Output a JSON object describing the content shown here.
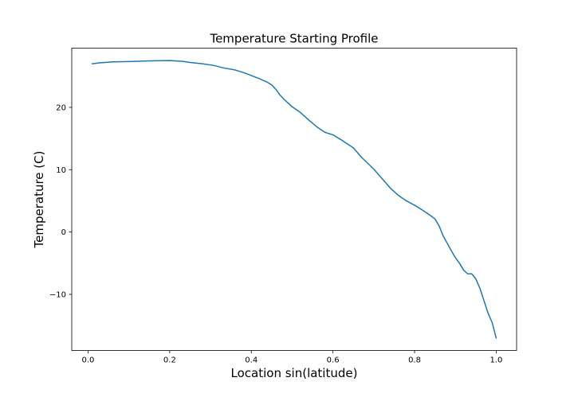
{
  "chart_data": {
    "type": "line",
    "title": "Temperature Starting Profile",
    "xlabel": "Location sin(latitude)",
    "ylabel": "Temperature (C)",
    "xlim": [
      -0.04,
      1.05
    ],
    "ylim": [
      -19,
      29.5
    ],
    "xticks": [
      0.0,
      0.2,
      0.4,
      0.6,
      0.8,
      1.0
    ],
    "xtick_labels": [
      "0.0",
      "0.2",
      "0.4",
      "0.6",
      "0.8",
      "1.0"
    ],
    "yticks": [
      -10,
      0,
      10,
      20
    ],
    "ytick_labels": [
      "−10",
      "0",
      "10",
      "20"
    ],
    "grid": false,
    "series": [
      {
        "color": "#1f77b4",
        "x": [
          0.01,
          0.03,
          0.06,
          0.1,
          0.15,
          0.2,
          0.23,
          0.25,
          0.28,
          0.31,
          0.33,
          0.36,
          0.38,
          0.4,
          0.42,
          0.44,
          0.45,
          0.46,
          0.47,
          0.48,
          0.5,
          0.52,
          0.54,
          0.56,
          0.58,
          0.6,
          0.62,
          0.65,
          0.67,
          0.7,
          0.72,
          0.74,
          0.76,
          0.78,
          0.8,
          0.82,
          0.84,
          0.85,
          0.86,
          0.87,
          0.88,
          0.89,
          0.9,
          0.91,
          0.92,
          0.93,
          0.94,
          0.95,
          0.96,
          0.97,
          0.98,
          0.99,
          1.0
        ],
        "y": [
          27.0,
          27.15,
          27.3,
          27.35,
          27.45,
          27.5,
          27.4,
          27.2,
          27.0,
          26.7,
          26.35,
          26.0,
          25.6,
          25.1,
          24.6,
          24.0,
          23.6,
          22.9,
          22.0,
          21.3,
          20.1,
          19.2,
          18.0,
          16.9,
          16.0,
          15.6,
          14.8,
          13.5,
          12.0,
          10.1,
          8.6,
          7.1,
          5.9,
          5.0,
          4.3,
          3.5,
          2.6,
          2.1,
          1.0,
          -0.6,
          -1.8,
          -3.0,
          -4.1,
          -5.0,
          -6.1,
          -6.7,
          -6.7,
          -7.5,
          -9.0,
          -11.0,
          -13.0,
          -14.5,
          -17.0
        ]
      }
    ]
  }
}
